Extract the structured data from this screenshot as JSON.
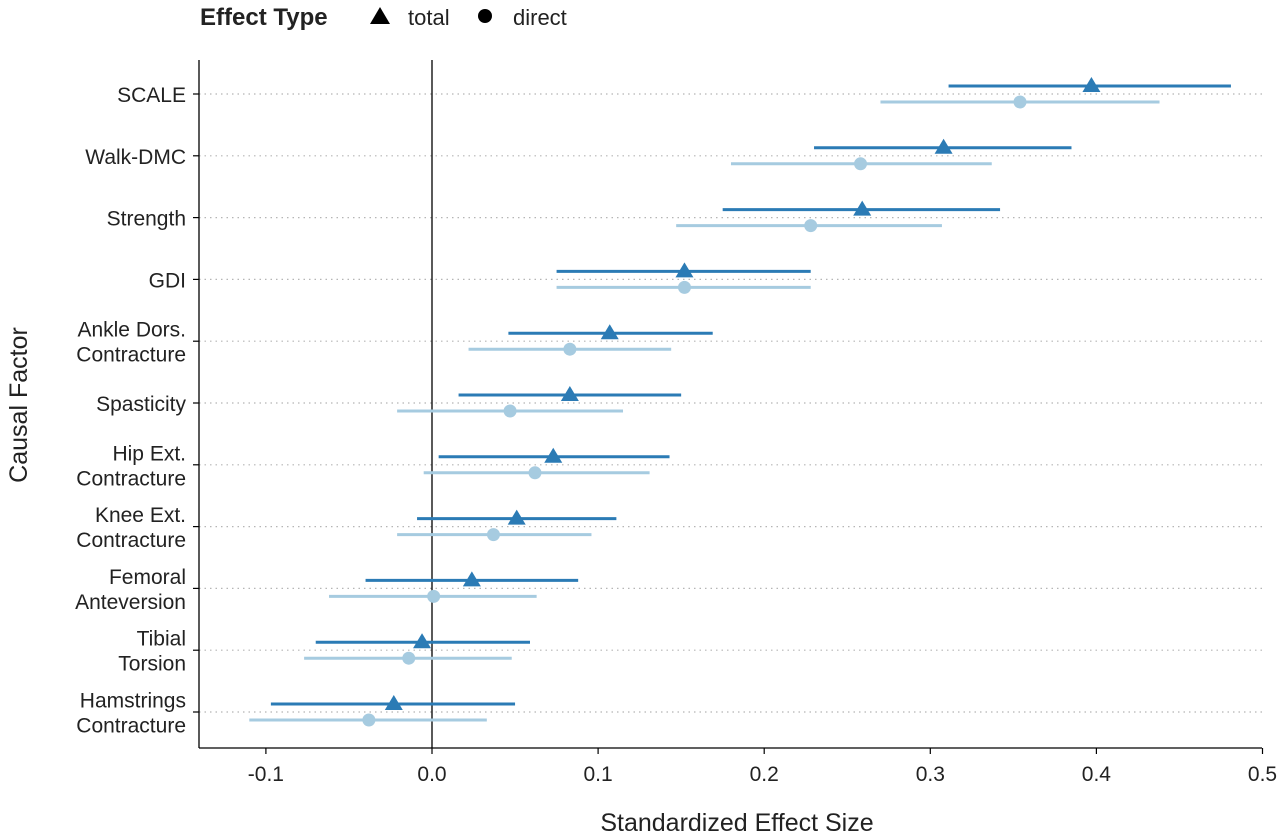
{
  "chart_data": {
    "type": "scatter",
    "subtype": "forest-plot",
    "title": "",
    "xlabel": "Standardized Effect Size",
    "ylabel": "Causal Factor",
    "xlim": [
      -0.14,
      0.51
    ],
    "x_ticks": [
      "-0.1",
      "0.0",
      "0.1",
      "0.2",
      "0.3",
      "0.4",
      "0.5"
    ],
    "x_tick_values": [
      -0.1,
      0.0,
      0.1,
      0.2,
      0.3,
      0.4,
      0.5
    ],
    "grid": "horizontal-dotted",
    "reference_line_x": 0.0,
    "legend": {
      "title": "Effect Type",
      "position": "top",
      "entries": [
        {
          "label": "total",
          "shape": "triangle"
        },
        {
          "label": "direct",
          "shape": "circle"
        }
      ]
    },
    "categories": [
      [
        "SCALE"
      ],
      [
        "Walk-DMC"
      ],
      [
        "Strength"
      ],
      [
        "GDI"
      ],
      [
        "Ankle Dors.",
        "Contracture"
      ],
      [
        "Spasticity"
      ],
      [
        "Hip Ext.",
        "Contracture"
      ],
      [
        "Knee Ext.",
        "Contracture"
      ],
      [
        "Femoral",
        "Anteversion"
      ],
      [
        "Tibial",
        "Torsion"
      ],
      [
        "Hamstrings",
        "Contracture"
      ]
    ],
    "series": [
      {
        "name": "total",
        "color": "#2b7bb5",
        "shape": "triangle",
        "estimate": [
          0.397,
          0.308,
          0.259,
          0.152,
          0.107,
          0.083,
          0.073,
          0.051,
          0.024,
          -0.006,
          -0.023
        ],
        "lower": [
          0.311,
          0.23,
          0.175,
          0.075,
          0.046,
          0.016,
          0.004,
          -0.009,
          -0.04,
          -0.07,
          -0.097
        ],
        "upper": [
          0.481,
          0.385,
          0.342,
          0.228,
          0.169,
          0.15,
          0.143,
          0.111,
          0.088,
          0.059,
          0.05
        ]
      },
      {
        "name": "direct",
        "color": "#a6cbe0",
        "shape": "circle",
        "estimate": [
          0.354,
          0.258,
          0.228,
          0.152,
          0.083,
          0.047,
          0.062,
          0.037,
          0.001,
          -0.014,
          -0.038
        ],
        "lower": [
          0.27,
          0.18,
          0.147,
          0.075,
          0.022,
          -0.021,
          -0.005,
          -0.021,
          -0.062,
          -0.077,
          -0.11
        ],
        "upper": [
          0.438,
          0.337,
          0.307,
          0.228,
          0.144,
          0.115,
          0.131,
          0.096,
          0.063,
          0.048,
          0.033
        ]
      }
    ]
  }
}
